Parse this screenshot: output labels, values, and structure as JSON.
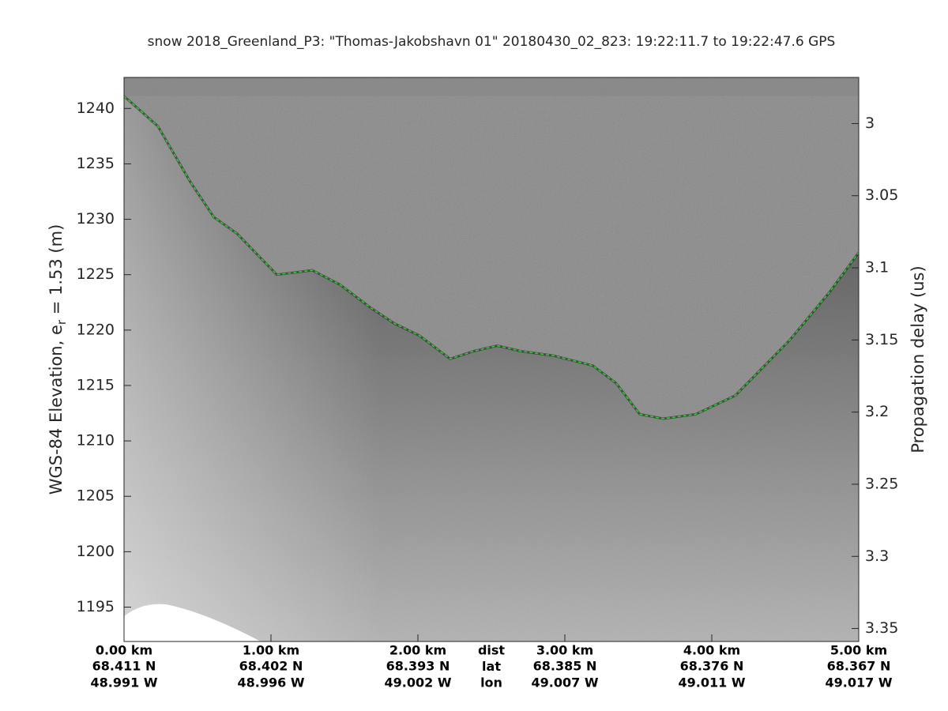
{
  "chart_data": {
    "type": "echogram",
    "title": "snow 2018_Greenland_P3: \"Thomas-Jakobshavn 01\"  20180430_02_823: 19:22:11.7 to 19:22:47.6 GPS",
    "ylabel": "WGS-84 Elevation, e",
    "ylabel_sub": "r",
    "ylabel_rest": " = 1.53 (m)",
    "y2label": "Propagation delay (us)",
    "xlabel_rows": [
      "dist",
      "lat",
      "lon"
    ],
    "xlim": [
      0,
      5
    ],
    "xticks": [
      {
        "value": 0,
        "label": "0.00 km"
      },
      {
        "value": 1,
        "label": "1.00 km"
      },
      {
        "value": 2,
        "label": "2.00 km"
      },
      {
        "value": 3,
        "label": "3.00 km"
      },
      {
        "value": 4,
        "label": "4.00 km"
      },
      {
        "value": 5,
        "label": "5.00 km"
      }
    ],
    "xtick_lat": [
      "68.411 N",
      "68.402 N",
      "68.393 N",
      "68.385 N",
      "68.376 N",
      "68.367 N"
    ],
    "xtick_lon": [
      "48.991 W",
      "48.996 W",
      "49.002 W",
      "49.007 W",
      "49.011 W",
      "49.017 W"
    ],
    "ylim": [
      1191.9,
      1242.8
    ],
    "yticks": [
      1195,
      1200,
      1205,
      1210,
      1215,
      1220,
      1225,
      1230,
      1235,
      1240
    ],
    "y2lim": [
      3.359,
      2.968
    ],
    "y2ticks": [
      3,
      3.05,
      3.1,
      3.15,
      3.2,
      3.25,
      3.3,
      3.35
    ],
    "series": [
      {
        "name": "surface",
        "color": "#22dd22",
        "x": [
          0,
          0.23,
          0.45,
          0.61,
          0.77,
          1.04,
          1.28,
          1.47,
          1.68,
          1.84,
          2.01,
          2.22,
          2.38,
          2.54,
          2.7,
          2.92,
          3.19,
          3.35,
          3.51,
          3.67,
          3.89,
          4.16,
          4.53,
          4.8,
          5
        ],
        "values": [
          1241.1,
          1238.4,
          1233.4,
          1230.2,
          1228.7,
          1225.0,
          1225.4,
          1224.1,
          1222.0,
          1220.6,
          1219.5,
          1217.4,
          1218.1,
          1218.6,
          1218.1,
          1217.7,
          1216.8,
          1215.2,
          1212.4,
          1212.0,
          1212.4,
          1214.1,
          1219.1,
          1223.4,
          1227.0
        ]
      }
    ]
  }
}
